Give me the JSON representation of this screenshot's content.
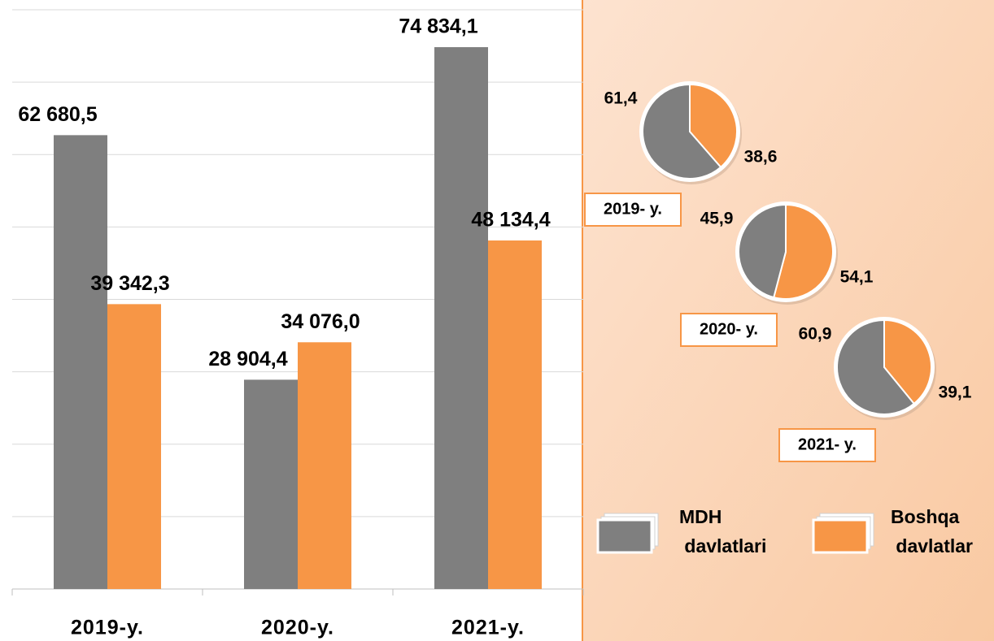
{
  "chart_data": [
    {
      "type": "bar",
      "categories": [
        "2019-y.",
        "2020-y.",
        "2021-y."
      ],
      "series": [
        {
          "name": "MDH davlatlari",
          "color": "#7f7f7f",
          "values": [
            62680.5,
            28904.4,
            74834.1
          ],
          "value_labels": [
            "62 680,5",
            "28 904,4",
            "74 834,1"
          ]
        },
        {
          "name": "Boshqa davlatlar",
          "color": "#f79646",
          "values": [
            39342.3,
            34076.0,
            48134.4
          ],
          "value_labels": [
            "39 342,3",
            "34 076,0",
            "48 134,4"
          ]
        }
      ],
      "ylim": [
        0,
        80000
      ],
      "yticks": [
        0,
        10000,
        20000,
        30000,
        40000,
        50000,
        60000,
        70000,
        80000
      ],
      "grid": true
    },
    {
      "type": "pie",
      "title": "2019- y.",
      "values": [
        61.4,
        38.6
      ],
      "value_labels": [
        "61,4",
        "38,6"
      ],
      "colors": [
        "#7f7f7f",
        "#f79646"
      ]
    },
    {
      "type": "pie",
      "title": "2020- y.",
      "values": [
        45.9,
        54.1
      ],
      "value_labels": [
        "45,9",
        "54,1"
      ],
      "colors": [
        "#7f7f7f",
        "#f79646"
      ]
    },
    {
      "type": "pie",
      "title": "2021- y.",
      "values": [
        60.9,
        39.1
      ],
      "value_labels": [
        "60,9",
        "39,1"
      ],
      "colors": [
        "#7f7f7f",
        "#f79646"
      ]
    }
  ]
}
